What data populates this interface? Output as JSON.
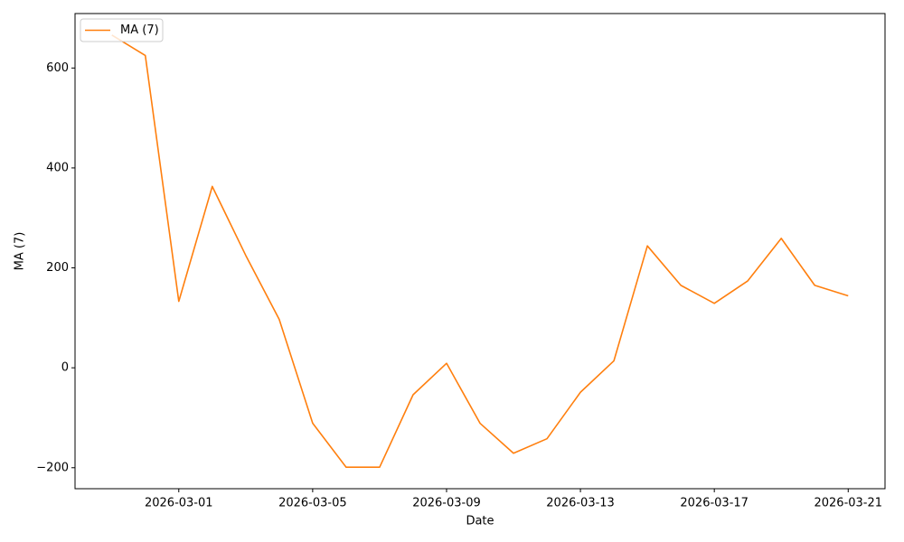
{
  "chart_data": {
    "type": "line",
    "x_label": "Date",
    "y_label": "MA (7)",
    "x": [
      "2026-02-27",
      "2026-02-28",
      "2026-03-01",
      "2026-03-02",
      "2026-03-03",
      "2026-03-04",
      "2026-03-05",
      "2026-03-06",
      "2026-03-07",
      "2026-03-08",
      "2026-03-09",
      "2026-03-10",
      "2026-03-11",
      "2026-03-12",
      "2026-03-13",
      "2026-03-14",
      "2026-03-15",
      "2026-03-16",
      "2026-03-17",
      "2026-03-18",
      "2026-03-19",
      "2026-03-20",
      "2026-03-21"
    ],
    "series": [
      {
        "name": "MA (7)",
        "color": "#ff7f0e",
        "values": [
          666,
          625,
          133,
          363,
          225,
          97,
          -111,
          -199,
          -199,
          -54,
          9,
          -111,
          -171,
          -142,
          -49,
          14,
          244,
          165,
          129,
          174,
          259,
          165,
          144
        ]
      }
    ],
    "xlim": [
      "2026-02-25T21:36",
      "2026-03-22T02:24"
    ],
    "xticks": [
      "2026-03-01",
      "2026-03-05",
      "2026-03-09",
      "2026-03-13",
      "2026-03-17",
      "2026-03-21"
    ],
    "ylim": [
      -242,
      709
    ],
    "yticks": [
      {
        "value": -200,
        "label": "−200"
      },
      0,
      200,
      400,
      600
    ],
    "grid": false,
    "legend": "upper left"
  }
}
